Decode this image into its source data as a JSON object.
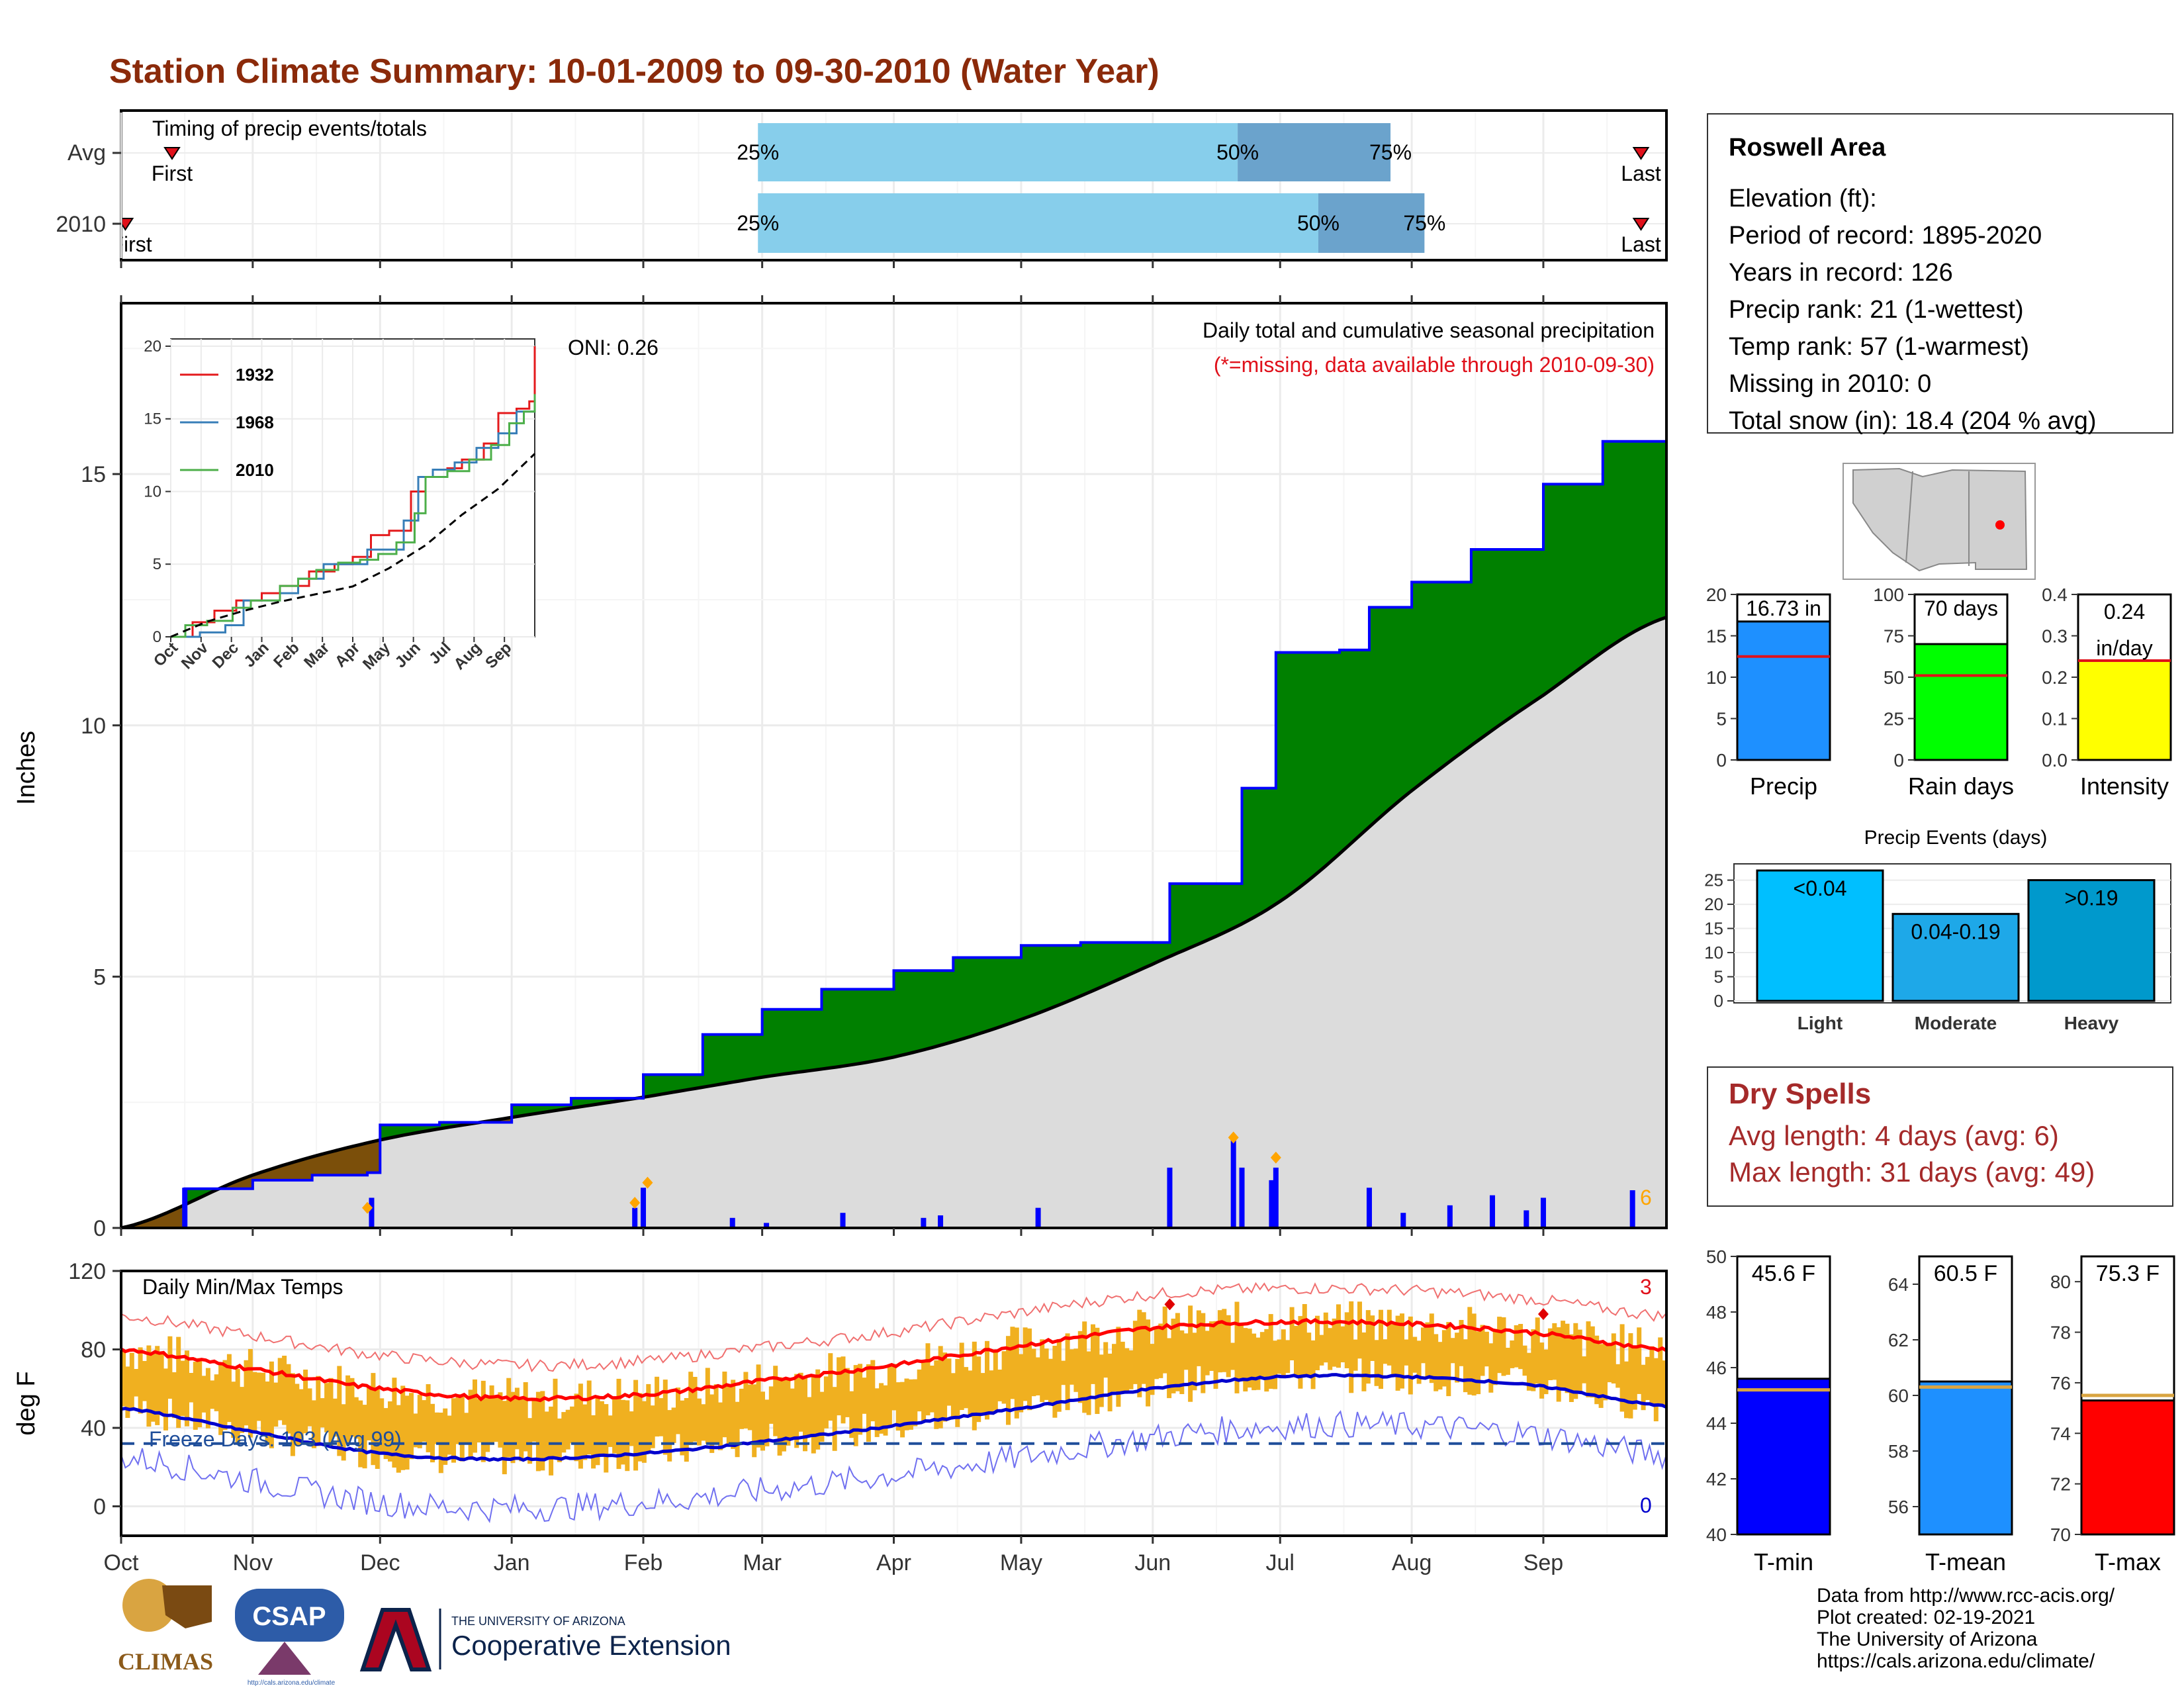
{
  "title": "Station Climate Summary: 10-01-2009 to 09-30-2010 (Water Year)",
  "colors": {
    "title": "#8B2A0A",
    "cum_green": "#008000",
    "cum_brown": "#7B4F0A",
    "normal_gray": "#DCDCDC",
    "precip_blue": "#0000FF",
    "light_blue": "#87CEEB",
    "mid_blue": "#6BA3CC",
    "avg_red": "#E0101A",
    "tmax_red": "#FF0000",
    "tmin_blue": "#0000CD",
    "temp_bar": "#F0B020",
    "marker_orange": "#FFA500",
    "rain_green": "#00FF00",
    "intensity_yellow": "#FFFF00",
    "precip_bar_blue": "#1E90FF",
    "event_light": "#00BFFF",
    "event_moderate": "#1EA8E8",
    "event_heavy": "#0099CC",
    "dry_spell_text": "#A52A2A"
  },
  "timing": {
    "label": "Timing of precip events/totals",
    "rows": [
      {
        "label": "Avg",
        "first_label": "First",
        "last_label": "Last",
        "first_date": "2009-10-13",
        "last_date": "2010-09-24",
        "q25_date": "2010-02-28",
        "q50_date": "2010-06-21",
        "q75_date": "2010-07-27",
        "p25": "25%",
        "p50": "50%",
        "p75": "75%"
      },
      {
        "label": "2010",
        "first_label": "First",
        "last_label": "Last",
        "first_date": "2009-10-02",
        "last_date": "2010-09-24",
        "q25_date": "2010-02-28",
        "q50_date": "2010-07-10",
        "q75_date": "2010-08-04",
        "p25": "25%",
        "p50": "50%",
        "p75": "75%"
      }
    ]
  },
  "main": {
    "ylabel": "Inches",
    "oni": "ONI: 0.26",
    "annotation1": "Daily total and cumulative seasonal precipitation",
    "annotation2": "(*=missing, data available through 2010-09-30)",
    "yticks": [
      0,
      5,
      10,
      15
    ],
    "ylim": [
      0,
      18.4
    ],
    "corner_count": "6"
  },
  "inset": {
    "yticks": [
      0,
      5,
      10,
      15,
      20
    ],
    "xlabels": [
      "Oct",
      "Nov",
      "Dec",
      "Jan",
      "Feb",
      "Mar",
      "Apr",
      "May",
      "Jun",
      "Jul",
      "Aug",
      "Sep"
    ],
    "legend": [
      "1932",
      "1968",
      "2010"
    ]
  },
  "temps": {
    "label": "Daily Min/Max Temps",
    "ylabel": "deg F",
    "yticks": [
      0,
      40,
      80,
      120
    ],
    "ylim": [
      -15,
      120
    ],
    "freeze": "Freeze Days: 103 (Avg 99)",
    "count_top": "3",
    "count_bottom": "0",
    "xlabels": [
      "Oct",
      "Nov",
      "Dec",
      "Jan",
      "Feb",
      "Mar",
      "Apr",
      "May",
      "Jun",
      "Jul",
      "Aug",
      "Sep"
    ]
  },
  "info": {
    "title": "Roswell Area",
    "lines": [
      "Elevation (ft):",
      "Period of record: 1895-2020",
      "Years in record: 126",
      "Precip rank: 21 (1-wettest)",
      "Temp rank: 57 (1-warmest)",
      "Missing in 2010: 0",
      "Total snow (in): 18.4 (204 % avg)"
    ]
  },
  "mini_bars": [
    {
      "label": "Precip",
      "value_label": "16.73 in",
      "value": 16.73,
      "avg": 12.5,
      "ymax": 20,
      "ticks": [
        0,
        5,
        10,
        15,
        20
      ]
    },
    {
      "label": "Rain days",
      "value_label": "70 days",
      "value": 70,
      "avg": 51,
      "ymax": 100,
      "ticks": [
        0,
        25,
        50,
        75,
        100
      ]
    },
    {
      "label": "Intensity",
      "value_label": "0.24",
      "value_label2": "in/day",
      "value": 0.24,
      "avg": 0.24,
      "ymax": 0.4,
      "ticks": [
        "0.0",
        "0.1",
        "0.2",
        "0.3",
        "0.4"
      ]
    }
  ],
  "events": {
    "title": "Precip Events (days)",
    "ticks": [
      0,
      5,
      10,
      15,
      20,
      25
    ],
    "bars": [
      {
        "category": "Light",
        "label": "<0.04",
        "value": 27
      },
      {
        "category": "Moderate",
        "label": "0.04-0.19",
        "value": 18
      },
      {
        "category": "Heavy",
        "label": ">0.19",
        "value": 25
      }
    ]
  },
  "dry_spells": {
    "title": "Dry Spells",
    "avg": "Avg length: 4 days (avg: 6)",
    "max": "Max length: 31 days (avg: 49)"
  },
  "temp_bars": [
    {
      "label": "T-min",
      "value_label": "45.6 F",
      "value": 45.6,
      "avg": 45.2,
      "ymin": 40,
      "ymax": 50,
      "ticks": [
        40,
        42,
        44,
        46,
        48,
        50
      ]
    },
    {
      "label": "T-mean",
      "value_label": "60.5 F",
      "value": 60.5,
      "avg": 60.3,
      "ymin": 55,
      "ymax": 65,
      "ticks": [
        56,
        58,
        60,
        62,
        64
      ]
    },
    {
      "label": "T-max",
      "value_label": "75.3 F",
      "value": 75.3,
      "avg": 75.5,
      "ymin": 70,
      "ymax": 81,
      "ticks": [
        70,
        72,
        74,
        76,
        78,
        80
      ]
    }
  ],
  "footer": {
    "lines": [
      "Data from http://www.rcc-acis.org/",
      "Plot created: 02-19-2021",
      "The University of Arizona",
      "https://cals.arizona.edu/climate/"
    ],
    "logo_climas": "CLIMAS",
    "logo_csap": "CSAP",
    "logo_csap_url": "http://cals.arizona.edu/climate",
    "logo_ua_small": "THE UNIVERSITY OF ARIZONA",
    "logo_ua_big": "Cooperative Extension"
  },
  "chart_data": [
    {
      "type": "area",
      "title": "Daily total and cumulative seasonal precipitation",
      "ylabel": "Inches",
      "ylim": [
        0,
        18.4
      ],
      "series": [
        {
          "name": "cumulative",
          "x": [
            "2009-10-01",
            "2009-10-16",
            "2009-11-01",
            "2009-11-15",
            "2009-11-28",
            "2009-12-01",
            "2009-12-15",
            "2010-01-01",
            "2010-01-15",
            "2010-02-01",
            "2010-02-15",
            "2010-03-01",
            "2010-03-15",
            "2010-04-01",
            "2010-04-15",
            "2010-05-01",
            "2010-05-15",
            "2010-06-01",
            "2010-06-05",
            "2010-06-15",
            "2010-06-22",
            "2010-06-30",
            "2010-07-15",
            "2010-07-22",
            "2010-08-01",
            "2010-08-15",
            "2010-09-01",
            "2010-09-15",
            "2010-09-30"
          ],
          "values": [
            0.0,
            0.78,
            0.95,
            1.05,
            1.1,
            2.05,
            2.1,
            2.45,
            2.58,
            3.05,
            3.85,
            4.35,
            4.75,
            5.12,
            5.38,
            5.62,
            5.68,
            5.68,
            6.85,
            6.85,
            8.75,
            11.45,
            11.5,
            12.35,
            12.85,
            13.5,
            14.8,
            15.65,
            16.73
          ]
        },
        {
          "name": "average",
          "x": [
            "2009-10-01",
            "2009-11-01",
            "2009-12-01",
            "2010-01-01",
            "2010-02-01",
            "2010-03-01",
            "2010-04-01",
            "2010-05-01",
            "2010-06-01",
            "2010-07-01",
            "2010-08-01",
            "2010-09-01",
            "2010-09-30"
          ],
          "values": [
            0.0,
            1.05,
            1.75,
            2.2,
            2.6,
            3.0,
            3.4,
            4.15,
            5.25,
            6.5,
            8.7,
            10.6,
            12.15
          ]
        }
      ],
      "daily_precip": [
        {
          "date": "2009-10-16",
          "value": 0.8
        },
        {
          "date": "2009-11-29",
          "value": 0.6
        },
        {
          "date": "2010-01-30",
          "value": 0.4
        },
        {
          "date": "2010-02-01",
          "value": 0.8
        },
        {
          "date": "2010-02-22",
          "value": 0.2
        },
        {
          "date": "2010-03-02",
          "value": 0.1
        },
        {
          "date": "2010-03-20",
          "value": 0.3
        },
        {
          "date": "2010-04-08",
          "value": 0.2
        },
        {
          "date": "2010-04-12",
          "value": 0.25
        },
        {
          "date": "2010-05-05",
          "value": 0.4
        },
        {
          "date": "2010-06-05",
          "value": 1.2
        },
        {
          "date": "2010-06-20",
          "value": 1.8
        },
        {
          "date": "2010-06-22",
          "value": 1.2
        },
        {
          "date": "2010-06-29",
          "value": 0.95
        },
        {
          "date": "2010-06-30",
          "value": 1.2
        },
        {
          "date": "2010-07-22",
          "value": 0.8
        },
        {
          "date": "2010-07-30",
          "value": 0.3
        },
        {
          "date": "2010-08-10",
          "value": 0.45
        },
        {
          "date": "2010-08-20",
          "value": 0.65
        },
        {
          "date": "2010-08-28",
          "value": 0.35
        },
        {
          "date": "2010-09-01",
          "value": 0.6
        },
        {
          "date": "2010-09-22",
          "value": 0.75
        }
      ]
    },
    {
      "type": "line",
      "title": "Daily Min/Max Temps",
      "ylabel": "deg F",
      "ylim": [
        -15,
        120
      ],
      "series": [
        {
          "name": "avg_max",
          "x": [
            "2009-10-01",
            "2009-11-01",
            "2009-12-01",
            "2010-01-01",
            "2010-02-01",
            "2010-03-01",
            "2010-04-01",
            "2010-05-01",
            "2010-06-01",
            "2010-07-01",
            "2010-08-01",
            "2010-09-01",
            "2010-09-30"
          ],
          "values": [
            80,
            70,
            60,
            55,
            57,
            64,
            72,
            82,
            91,
            94,
            93,
            88,
            80
          ]
        },
        {
          "name": "avg_min",
          "x": [
            "2009-10-01",
            "2009-11-01",
            "2009-12-01",
            "2010-01-01",
            "2010-02-01",
            "2010-03-01",
            "2010-04-01",
            "2010-05-01",
            "2010-06-01",
            "2010-07-01",
            "2010-08-01",
            "2010-09-01",
            "2010-09-30"
          ],
          "values": [
            50,
            38,
            27,
            24,
            27,
            33,
            41,
            50,
            60,
            66,
            66,
            61,
            51
          ]
        }
      ]
    }
  ]
}
